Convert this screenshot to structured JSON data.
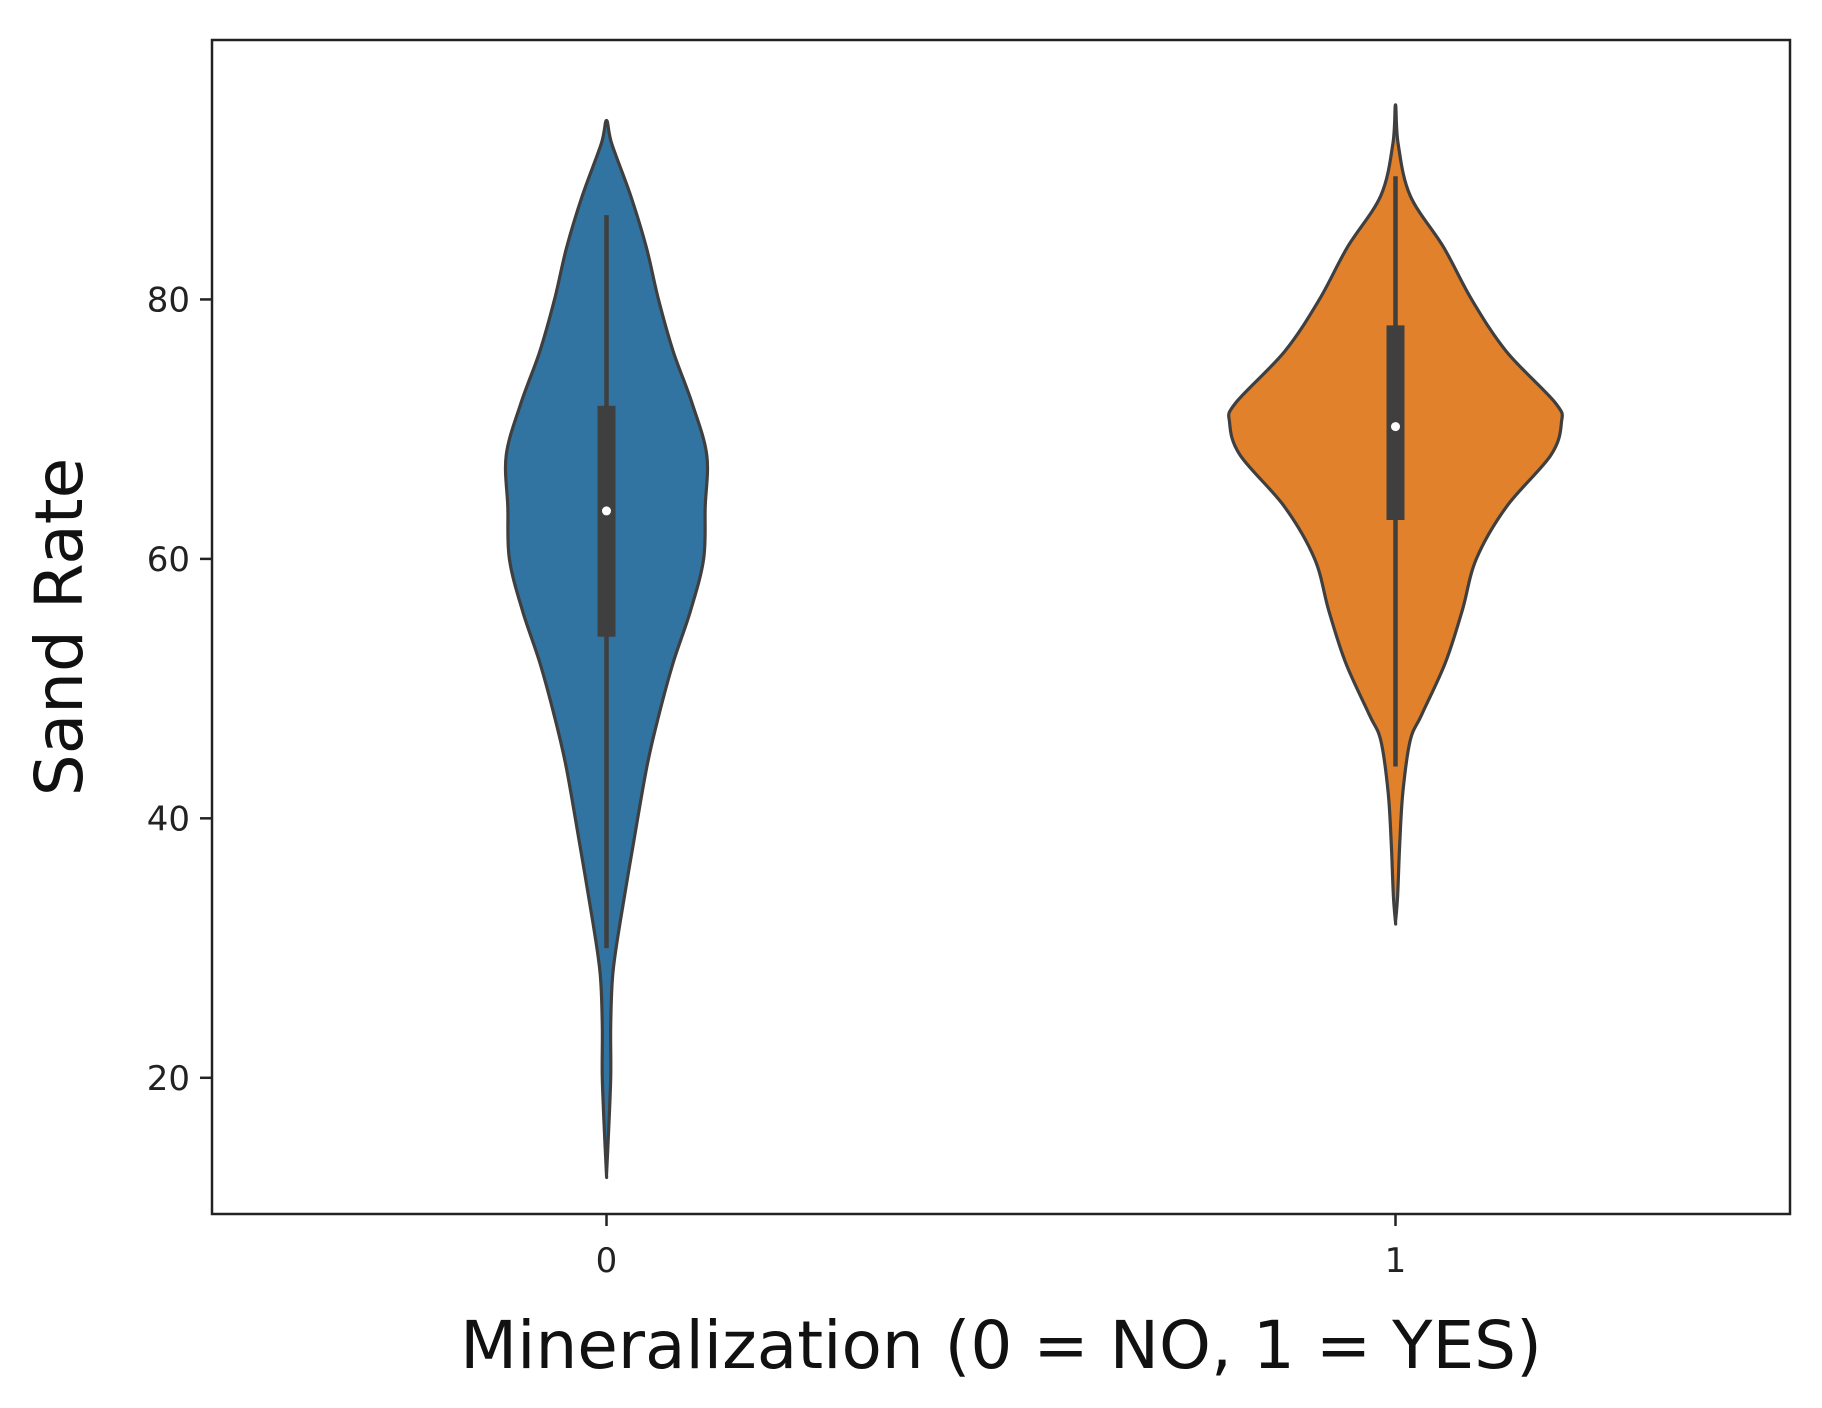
{
  "chart_data": {
    "type": "violin",
    "xlabel": "Mineralization (0 = NO, 1 = YES)",
    "ylabel": "Sand Rate",
    "ylim": [
      9.5,
      100
    ],
    "yticks": [
      20,
      40,
      60,
      80
    ],
    "categories": [
      "0",
      "1"
    ],
    "grid": false,
    "series": [
      {
        "category": "0",
        "color": "#3274a1",
        "min": 12.5,
        "max": 93.8,
        "whisker_low": 30,
        "whisker_high": 86.5,
        "q1": 54,
        "median": 63.7,
        "q3": 71.8,
        "density": [
          [
            12.5,
            0
          ],
          [
            15,
            0.3
          ],
          [
            20,
            0.8
          ],
          [
            24,
            0.8
          ],
          [
            28,
            1.2
          ],
          [
            32,
            2.6
          ],
          [
            38,
            5.1
          ],
          [
            44,
            7.7
          ],
          [
            48,
            10
          ],
          [
            52,
            12.7
          ],
          [
            56,
            16
          ],
          [
            60,
            18.5
          ],
          [
            64,
            18.8
          ],
          [
            68,
            19.1
          ],
          [
            72,
            16.3
          ],
          [
            76,
            12.7
          ],
          [
            80,
            9.9
          ],
          [
            84,
            7.6
          ],
          [
            88,
            4.6
          ],
          [
            92,
            1
          ],
          [
            93.8,
            0
          ]
        ]
      },
      {
        "category": "1",
        "color": "#e1812c",
        "min": 32,
        "max": 95,
        "whisker_low": 44,
        "whisker_high": 89.5,
        "q1": 63,
        "median": 70.2,
        "q3": 78,
        "density": [
          [
            32,
            0
          ],
          [
            34,
            0.4
          ],
          [
            38,
            0.8
          ],
          [
            42,
            1.4
          ],
          [
            46,
            2.8
          ],
          [
            48,
            5
          ],
          [
            52,
            9.5
          ],
          [
            56,
            12.7
          ],
          [
            60,
            15.4
          ],
          [
            64,
            21.1
          ],
          [
            68,
            29.6
          ],
          [
            70.5,
            31.6
          ],
          [
            72,
            30.5
          ],
          [
            76,
            21.1
          ],
          [
            80,
            14.5
          ],
          [
            84,
            9.2
          ],
          [
            88,
            2.8
          ],
          [
            92,
            0.5
          ],
          [
            95,
            0
          ]
        ]
      }
    ]
  }
}
